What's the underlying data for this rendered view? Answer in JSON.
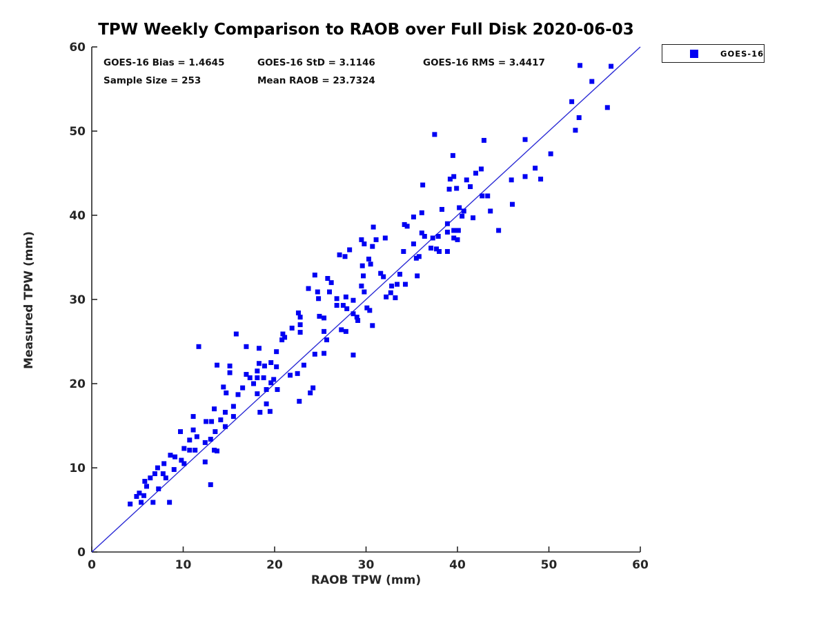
{
  "title": "TPW Weekly Comparison to RAOB over Full Disk 2020-06-03",
  "stats": {
    "bias": "GOES-16 Bias = 1.4645",
    "std": "GOES-16 StD = 3.1146",
    "rms": "GOES-16 RMS = 3.4417",
    "sample_size": "Sample Size = 253",
    "mean_raob": "Mean RAOB = 23.7324"
  },
  "legend": {
    "label": "GOES-16"
  },
  "colors": {
    "marker": "#0000f2",
    "ref_line": "#2b2bd5",
    "axis": "#262626",
    "text": "#111111"
  },
  "chart_data": {
    "type": "scatter",
    "title": "TPW Weekly Comparison to RAOB over Full Disk 2020-06-03",
    "xlabel": "RAOB TPW (mm)",
    "ylabel": "Measured TPW (mm)",
    "xlim": [
      0,
      60
    ],
    "ylim": [
      0,
      60
    ],
    "xticks": [
      0,
      10,
      20,
      30,
      40,
      50,
      60
    ],
    "yticks": [
      0,
      10,
      20,
      30,
      40,
      50,
      60
    ],
    "grid": false,
    "legend_position": "outside-top-right",
    "marker_shape": "square",
    "marker_size": 7,
    "ref_line": {
      "from": [
        0,
        0
      ],
      "to": [
        60,
        60
      ]
    },
    "annotations": [
      "GOES-16 Bias = 1.4645",
      "GOES-16 StD = 3.1146",
      "GOES-16 RMS = 3.4417",
      "Sample Size = 253",
      "Mean RAOB = 23.7324"
    ],
    "series": [
      {
        "name": "GOES-16",
        "points": [
          [
            13.4,
            17.0
          ],
          [
            14.6,
            16.6
          ],
          [
            15.5,
            16.1
          ],
          [
            14.1,
            15.7
          ],
          [
            12.5,
            15.5
          ],
          [
            13.1,
            15.5
          ],
          [
            11.1,
            16.1
          ],
          [
            9.7,
            14.3
          ],
          [
            11.1,
            14.5
          ],
          [
            13.5,
            14.3
          ],
          [
            11.5,
            13.7
          ],
          [
            10.7,
            13.3
          ],
          [
            13.0,
            13.4
          ],
          [
            12.4,
            13.0
          ],
          [
            10.1,
            12.3
          ],
          [
            10.7,
            12.1
          ],
          [
            11.3,
            12.1
          ],
          [
            13.4,
            12.1
          ],
          [
            13.7,
            12.0
          ],
          [
            8.6,
            11.5
          ],
          [
            9.1,
            11.3
          ],
          [
            9.8,
            10.9
          ],
          [
            10.1,
            10.5
          ],
          [
            7.9,
            10.5
          ],
          [
            12.4,
            10.7
          ],
          [
            9.0,
            9.8
          ],
          [
            7.2,
            10.0
          ],
          [
            6.9,
            9.3
          ],
          [
            7.8,
            9.3
          ],
          [
            8.1,
            8.8
          ],
          [
            6.4,
            8.8
          ],
          [
            5.8,
            8.4
          ],
          [
            6.0,
            7.8
          ],
          [
            7.3,
            7.5
          ],
          [
            13.0,
            8.0
          ],
          [
            5.2,
            7.0
          ],
          [
            5.7,
            6.7
          ],
          [
            4.9,
            6.6
          ],
          [
            5.4,
            5.9
          ],
          [
            8.5,
            5.9
          ],
          [
            6.7,
            5.9
          ],
          [
            4.2,
            5.7
          ],
          [
            14.4,
            19.6
          ],
          [
            14.7,
            18.9
          ],
          [
            16.5,
            19.5
          ],
          [
            17.7,
            20.0
          ],
          [
            18.1,
            18.8
          ],
          [
            19.1,
            19.3
          ],
          [
            16.0,
            18.7
          ],
          [
            19.1,
            17.6
          ],
          [
            19.5,
            16.7
          ],
          [
            18.4,
            16.6
          ],
          [
            15.5,
            17.3
          ],
          [
            14.6,
            14.9
          ],
          [
            15.8,
            25.9
          ],
          [
            11.7,
            24.4
          ],
          [
            16.9,
            24.4
          ],
          [
            18.3,
            24.2
          ],
          [
            13.7,
            22.2
          ],
          [
            15.1,
            22.1
          ],
          [
            19.6,
            22.5
          ],
          [
            18.3,
            22.4
          ],
          [
            18.9,
            22.1
          ],
          [
            15.1,
            21.3
          ],
          [
            16.9,
            21.1
          ],
          [
            17.3,
            20.7
          ],
          [
            18.1,
            21.5
          ],
          [
            18.1,
            20.7
          ],
          [
            18.8,
            20.7
          ],
          [
            19.9,
            20.5
          ],
          [
            19.6,
            20.1
          ],
          [
            20.2,
            23.8
          ],
          [
            20.3,
            19.3
          ],
          [
            24.2,
            19.5
          ],
          [
            23.9,
            18.9
          ],
          [
            22.7,
            17.9
          ],
          [
            34.2,
            38.9
          ],
          [
            34.5,
            38.7
          ],
          [
            30.8,
            38.6
          ],
          [
            36.1,
            37.9
          ],
          [
            36.4,
            37.5
          ],
          [
            38.9,
            39.0
          ],
          [
            38.9,
            38.0
          ],
          [
            39.6,
            38.2
          ],
          [
            39.6,
            37.3
          ],
          [
            40.0,
            37.1
          ],
          [
            37.3,
            37.3
          ],
          [
            35.2,
            36.6
          ],
          [
            31.1,
            37.1
          ],
          [
            32.1,
            37.3
          ],
          [
            29.5,
            37.1
          ],
          [
            29.8,
            36.6
          ],
          [
            30.7,
            36.3
          ],
          [
            28.2,
            35.9
          ],
          [
            27.1,
            35.3
          ],
          [
            27.7,
            35.1
          ],
          [
            34.1,
            35.7
          ],
          [
            35.5,
            34.9
          ],
          [
            35.8,
            35.1
          ],
          [
            37.1,
            36.1
          ],
          [
            37.7,
            36.0
          ],
          [
            38.0,
            35.7
          ],
          [
            38.9,
            35.7
          ],
          [
            30.3,
            34.8
          ],
          [
            33.7,
            33.0
          ],
          [
            33.4,
            31.8
          ],
          [
            34.3,
            31.8
          ],
          [
            35.6,
            32.8
          ],
          [
            33.2,
            30.2
          ],
          [
            32.7,
            30.8
          ],
          [
            20.9,
            25.9
          ],
          [
            21.1,
            25.5
          ],
          [
            20.8,
            25.2
          ],
          [
            21.9,
            26.6
          ],
          [
            24.4,
            23.5
          ],
          [
            25.4,
            23.6
          ],
          [
            28.6,
            23.4
          ],
          [
            23.2,
            22.2
          ],
          [
            20.2,
            22.0
          ],
          [
            21.7,
            21.0
          ],
          [
            22.5,
            21.2
          ],
          [
            25.7,
            25.2
          ],
          [
            29.6,
            34.0
          ],
          [
            30.5,
            34.2
          ],
          [
            24.4,
            32.9
          ],
          [
            25.8,
            32.5
          ],
          [
            26.2,
            32.0
          ],
          [
            29.7,
            32.8
          ],
          [
            31.6,
            33.1
          ],
          [
            31.9,
            32.7
          ],
          [
            29.5,
            31.6
          ],
          [
            29.8,
            30.9
          ],
          [
            23.7,
            31.3
          ],
          [
            24.7,
            30.9
          ],
          [
            26.0,
            30.9
          ],
          [
            32.8,
            31.6
          ],
          [
            32.2,
            30.3
          ],
          [
            26.8,
            30.1
          ],
          [
            24.8,
            30.1
          ],
          [
            27.8,
            30.3
          ],
          [
            28.6,
            29.9
          ],
          [
            26.8,
            29.3
          ],
          [
            27.5,
            29.3
          ],
          [
            27.9,
            28.9
          ],
          [
            22.6,
            28.4
          ],
          [
            22.8,
            27.9
          ],
          [
            28.6,
            28.3
          ],
          [
            29.0,
            27.9
          ],
          [
            30.1,
            29.0
          ],
          [
            30.4,
            28.7
          ],
          [
            24.9,
            28.0
          ],
          [
            25.4,
            27.8
          ],
          [
            29.1,
            27.5
          ],
          [
            22.8,
            27.0
          ],
          [
            30.7,
            26.9
          ],
          [
            25.4,
            26.2
          ],
          [
            27.3,
            26.4
          ],
          [
            27.8,
            26.2
          ],
          [
            22.8,
            26.1
          ],
          [
            40.5,
            39.9
          ],
          [
            41.7,
            39.7
          ],
          [
            40.1,
            38.2
          ],
          [
            37.5,
            49.6
          ],
          [
            39.5,
            47.1
          ],
          [
            39.2,
            44.3
          ],
          [
            39.6,
            44.6
          ],
          [
            36.2,
            43.6
          ],
          [
            39.1,
            43.1
          ],
          [
            39.9,
            43.2
          ],
          [
            36.1,
            40.3
          ],
          [
            38.3,
            40.7
          ],
          [
            40.2,
            40.9
          ],
          [
            35.2,
            39.8
          ],
          [
            37.9,
            37.5
          ],
          [
            53.4,
            57.8
          ],
          [
            56.8,
            57.7
          ],
          [
            54.7,
            55.9
          ],
          [
            52.5,
            53.5
          ],
          [
            56.4,
            52.8
          ],
          [
            53.3,
            51.6
          ],
          [
            52.9,
            50.1
          ],
          [
            42.9,
            48.9
          ],
          [
            47.4,
            49.0
          ],
          [
            50.2,
            47.3
          ],
          [
            48.5,
            45.6
          ],
          [
            42.6,
            45.5
          ],
          [
            42.0,
            45.0
          ],
          [
            47.4,
            44.6
          ],
          [
            49.1,
            44.3
          ],
          [
            41.0,
            44.2
          ],
          [
            45.9,
            44.2
          ],
          [
            41.4,
            43.4
          ],
          [
            42.7,
            42.3
          ],
          [
            43.3,
            42.3
          ],
          [
            46.0,
            41.3
          ],
          [
            43.6,
            40.5
          ],
          [
            40.7,
            40.5
          ],
          [
            44.5,
            38.2
          ]
        ]
      }
    ]
  }
}
